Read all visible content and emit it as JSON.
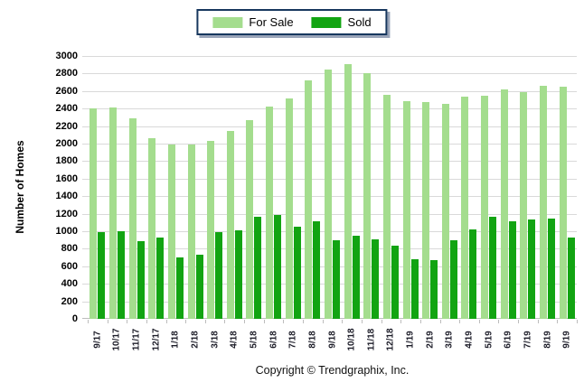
{
  "copyright": "Copyright © Trendgraphix, Inc.",
  "colors": {
    "for_sale": "#A4DD8E",
    "sold": "#12A412",
    "gridline": "#D9D9D9",
    "axis": "#BDBDBD",
    "legend_border": "#17375E"
  },
  "chart_data": {
    "type": "bar",
    "title": "",
    "xlabel": "",
    "ylabel": "Number of Homes",
    "ylim": [
      0,
      3000
    ],
    "ytick_step": 200,
    "grid": true,
    "legend_position": "top-center",
    "categories": [
      "9/17",
      "10/17",
      "11/17",
      "12/17",
      "1/18",
      "2/18",
      "3/18",
      "4/18",
      "5/18",
      "6/18",
      "7/18",
      "8/18",
      "9/18",
      "10/18",
      "11/18",
      "12/18",
      "1/19",
      "2/19",
      "3/19",
      "4/19",
      "5/19",
      "6/19",
      "7/19",
      "8/19",
      "9/19"
    ],
    "series": [
      {
        "name": "For Sale",
        "color": "#A4DD8E",
        "values": [
          2400,
          2410,
          2290,
          2060,
          1990,
          1990,
          2030,
          2140,
          2270,
          2420,
          2520,
          2720,
          2850,
          2910,
          2800,
          2560,
          2480,
          2470,
          2450,
          2540,
          2550,
          2620,
          2590,
          2660,
          2650
        ]
      },
      {
        "name": "Sold",
        "color": "#12A412",
        "values": [
          990,
          1000,
          890,
          930,
          700,
          730,
          990,
          1010,
          1160,
          1190,
          1050,
          1110,
          900,
          950,
          910,
          840,
          680,
          670,
          900,
          1020,
          1160,
          1110,
          1130,
          1140,
          930
        ]
      }
    ]
  }
}
